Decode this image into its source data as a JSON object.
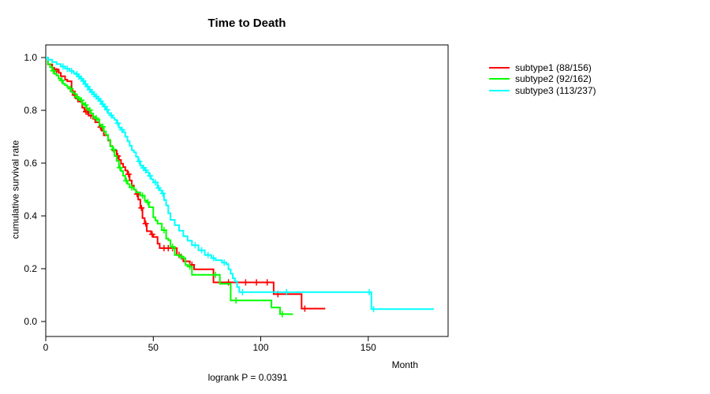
{
  "chart_data": {
    "type": "line",
    "variant": "kaplan-meier-step",
    "title": "Time to Death",
    "xlabel": "Month",
    "ylabel": "cumulative survival rate",
    "footnote": "logrank P = 0.0391",
    "xlim": [
      0,
      187
    ],
    "ylim": [
      0,
      1.05
    ],
    "xticks": [
      0,
      50,
      100,
      150
    ],
    "yticks": [
      1.0,
      0.8,
      0.6,
      0.4,
      0.2,
      0.0
    ],
    "ytick_labels": [
      "1.0",
      "0.8",
      "0.6",
      "0.4",
      "0.2",
      "0.0"
    ],
    "grid": false,
    "legend_position": "right-outside",
    "axis_color": "#000000",
    "series": [
      {
        "name": "subtype1 (88/156)",
        "color": "#ff0000",
        "steps": [
          [
            0,
            1.0
          ],
          [
            1,
            0.974
          ],
          [
            3,
            0.961
          ],
          [
            4,
            0.955
          ],
          [
            6,
            0.942
          ],
          [
            7,
            0.929
          ],
          [
            9,
            0.916
          ],
          [
            10,
            0.91
          ],
          [
            12,
            0.872
          ],
          [
            13,
            0.858
          ],
          [
            14,
            0.845
          ],
          [
            15,
            0.833
          ],
          [
            17,
            0.81
          ],
          [
            18,
            0.795
          ],
          [
            20,
            0.78
          ],
          [
            22,
            0.768
          ],
          [
            23,
            0.755
          ],
          [
            25,
            0.736
          ],
          [
            26,
            0.723
          ],
          [
            27,
            0.705
          ],
          [
            29,
            0.686
          ],
          [
            30,
            0.665
          ],
          [
            31,
            0.648
          ],
          [
            33,
            0.627
          ],
          [
            34,
            0.612
          ],
          [
            35,
            0.598
          ],
          [
            36,
            0.585
          ],
          [
            37,
            0.572
          ],
          [
            38,
            0.558
          ],
          [
            39,
            0.534
          ],
          [
            40,
            0.515
          ],
          [
            41,
            0.5
          ],
          [
            42,
            0.483
          ],
          [
            43,
            0.462
          ],
          [
            44,
            0.43
          ],
          [
            45,
            0.392
          ],
          [
            46,
            0.371
          ],
          [
            47,
            0.342
          ],
          [
            49,
            0.33
          ],
          [
            50,
            0.32
          ],
          [
            52,
            0.295
          ],
          [
            53,
            0.278
          ],
          [
            61,
            0.252
          ],
          [
            63,
            0.238
          ],
          [
            64,
            0.228
          ],
          [
            67,
            0.215
          ],
          [
            69,
            0.198
          ],
          [
            78,
            0.148
          ],
          [
            106,
            0.104
          ],
          [
            119,
            0.049
          ],
          [
            130,
            0.049
          ]
        ],
        "censors": [
          [
            5,
            0.948
          ],
          [
            12.5,
            0.872
          ],
          [
            13.5,
            0.858
          ],
          [
            18.7,
            0.795
          ],
          [
            19.4,
            0.795
          ],
          [
            21,
            0.78
          ],
          [
            25.5,
            0.736
          ],
          [
            33.5,
            0.627
          ],
          [
            38.5,
            0.558
          ],
          [
            42.5,
            0.483
          ],
          [
            44.5,
            0.43
          ],
          [
            46.5,
            0.371
          ],
          [
            49.5,
            0.33
          ],
          [
            55,
            0.278
          ],
          [
            57,
            0.278
          ],
          [
            59,
            0.278
          ],
          [
            62,
            0.252
          ],
          [
            68,
            0.215
          ],
          [
            85,
            0.148
          ],
          [
            93,
            0.148
          ],
          [
            98,
            0.148
          ],
          [
            103,
            0.148
          ],
          [
            108,
            0.104
          ],
          [
            120.5,
            0.049
          ]
        ]
      },
      {
        "name": "subtype2 (92/162)",
        "color": "#00ff00",
        "steps": [
          [
            0,
            1.0
          ],
          [
            1,
            0.975
          ],
          [
            2,
            0.963
          ],
          [
            3,
            0.95
          ],
          [
            4,
            0.938
          ],
          [
            5,
            0.932
          ],
          [
            6,
            0.92
          ],
          [
            7,
            0.913
          ],
          [
            8,
            0.901
          ],
          [
            9,
            0.895
          ],
          [
            10,
            0.888
          ],
          [
            11,
            0.882
          ],
          [
            12,
            0.869
          ],
          [
            13,
            0.863
          ],
          [
            14,
            0.851
          ],
          [
            15,
            0.845
          ],
          [
            16,
            0.838
          ],
          [
            17,
            0.826
          ],
          [
            18,
            0.82
          ],
          [
            19,
            0.807
          ],
          [
            20,
            0.801
          ],
          [
            21,
            0.788
          ],
          [
            22,
            0.776
          ],
          [
            23,
            0.77
          ],
          [
            24,
            0.764
          ],
          [
            25,
            0.745
          ],
          [
            26,
            0.738
          ],
          [
            27,
            0.72
          ],
          [
            28,
            0.707
          ],
          [
            29,
            0.688
          ],
          [
            30,
            0.664
          ],
          [
            31,
            0.652
          ],
          [
            32,
            0.627
          ],
          [
            33,
            0.608
          ],
          [
            34,
            0.583
          ],
          [
            35,
            0.57
          ],
          [
            36,
            0.552
          ],
          [
            37,
            0.533
          ],
          [
            38,
            0.521
          ],
          [
            39,
            0.508
          ],
          [
            41,
            0.5
          ],
          [
            42,
            0.489
          ],
          [
            44,
            0.477
          ],
          [
            46,
            0.458
          ],
          [
            47,
            0.452
          ],
          [
            48,
            0.433
          ],
          [
            50,
            0.395
          ],
          [
            51,
            0.383
          ],
          [
            52,
            0.371
          ],
          [
            54,
            0.346
          ],
          [
            56,
            0.314
          ],
          [
            57,
            0.308
          ],
          [
            58,
            0.283
          ],
          [
            60,
            0.252
          ],
          [
            62,
            0.246
          ],
          [
            64,
            0.24
          ],
          [
            65,
            0.214
          ],
          [
            66,
            0.208
          ],
          [
            68,
            0.177
          ],
          [
            81,
            0.143
          ],
          [
            86,
            0.08
          ],
          [
            105,
            0.053
          ],
          [
            109,
            0.028
          ],
          [
            115,
            0.028
          ]
        ],
        "censors": [
          [
            3.5,
            0.95
          ],
          [
            7.5,
            0.913
          ],
          [
            11.5,
            0.882
          ],
          [
            14.5,
            0.851
          ],
          [
            16.5,
            0.838
          ],
          [
            18.5,
            0.82
          ],
          [
            20.5,
            0.801
          ],
          [
            23.5,
            0.77
          ],
          [
            26.5,
            0.738
          ],
          [
            31.5,
            0.652
          ],
          [
            34.5,
            0.583
          ],
          [
            37.5,
            0.533
          ],
          [
            40,
            0.508
          ],
          [
            45,
            0.477
          ],
          [
            47.5,
            0.452
          ],
          [
            55,
            0.346
          ],
          [
            59,
            0.283
          ],
          [
            63,
            0.246
          ],
          [
            67,
            0.208
          ],
          [
            79,
            0.177
          ],
          [
            88.5,
            0.08
          ],
          [
            110,
            0.028
          ]
        ]
      },
      {
        "name": "subtype3 (113/237)",
        "color": "#00ffff",
        "steps": [
          [
            0,
            1.0
          ],
          [
            1,
            0.992
          ],
          [
            3,
            0.983
          ],
          [
            5,
            0.975
          ],
          [
            7,
            0.966
          ],
          [
            9,
            0.958
          ],
          [
            11,
            0.949
          ],
          [
            13,
            0.941
          ],
          [
            14,
            0.937
          ],
          [
            15,
            0.928
          ],
          [
            16,
            0.92
          ],
          [
            17,
            0.911
          ],
          [
            18,
            0.899
          ],
          [
            19,
            0.89
          ],
          [
            20,
            0.878
          ],
          [
            21,
            0.869
          ],
          [
            22,
            0.861
          ],
          [
            23,
            0.852
          ],
          [
            24,
            0.844
          ],
          [
            25,
            0.835
          ],
          [
            26,
            0.823
          ],
          [
            27,
            0.814
          ],
          [
            28,
            0.802
          ],
          [
            29,
            0.789
          ],
          [
            30,
            0.781
          ],
          [
            31,
            0.772
          ],
          [
            32,
            0.764
          ],
          [
            33,
            0.751
          ],
          [
            34,
            0.734
          ],
          [
            35,
            0.726
          ],
          [
            36,
            0.717
          ],
          [
            37,
            0.7
          ],
          [
            38,
            0.683
          ],
          [
            39,
            0.666
          ],
          [
            40,
            0.649
          ],
          [
            41,
            0.641
          ],
          [
            42,
            0.624
          ],
          [
            43,
            0.607
          ],
          [
            44,
            0.59
          ],
          [
            45,
            0.582
          ],
          [
            46,
            0.573
          ],
          [
            47,
            0.565
          ],
          [
            48,
            0.552
          ],
          [
            49,
            0.539
          ],
          [
            50,
            0.527
          ],
          [
            52,
            0.506
          ],
          [
            53,
            0.497
          ],
          [
            54,
            0.485
          ],
          [
            55,
            0.46
          ],
          [
            56,
            0.44
          ],
          [
            57,
            0.41
          ],
          [
            58,
            0.385
          ],
          [
            60,
            0.365
          ],
          [
            62,
            0.344
          ],
          [
            64,
            0.323
          ],
          [
            66,
            0.306
          ],
          [
            68,
            0.289
          ],
          [
            71,
            0.27
          ],
          [
            74,
            0.252
          ],
          [
            77,
            0.24
          ],
          [
            79,
            0.232
          ],
          [
            82,
            0.223
          ],
          [
            84,
            0.217
          ],
          [
            85,
            0.198
          ],
          [
            86,
            0.181
          ],
          [
            87,
            0.164
          ],
          [
            88,
            0.152
          ],
          [
            89,
            0.13
          ],
          [
            90,
            0.111
          ],
          [
            151.5,
            0.047
          ],
          [
            180.5,
            0.047
          ]
        ],
        "censors": [
          [
            8,
            0.966
          ],
          [
            10,
            0.958
          ],
          [
            12,
            0.949
          ],
          [
            14.5,
            0.937
          ],
          [
            15.5,
            0.928
          ],
          [
            16.5,
            0.92
          ],
          [
            17.5,
            0.911
          ],
          [
            18.5,
            0.899
          ],
          [
            19.5,
            0.89
          ],
          [
            20.5,
            0.878
          ],
          [
            21.5,
            0.869
          ],
          [
            22.5,
            0.861
          ],
          [
            23.5,
            0.852
          ],
          [
            24.5,
            0.844
          ],
          [
            25.5,
            0.835
          ],
          [
            26.5,
            0.823
          ],
          [
            27.5,
            0.814
          ],
          [
            28.5,
            0.802
          ],
          [
            30.5,
            0.781
          ],
          [
            33.5,
            0.751
          ],
          [
            35.5,
            0.726
          ],
          [
            43.5,
            0.607
          ],
          [
            45.5,
            0.582
          ],
          [
            46.5,
            0.573
          ],
          [
            48.5,
            0.552
          ],
          [
            51,
            0.527
          ],
          [
            52.5,
            0.506
          ],
          [
            54.5,
            0.485
          ],
          [
            69.5,
            0.289
          ],
          [
            72.5,
            0.27
          ],
          [
            75.5,
            0.252
          ],
          [
            78,
            0.24
          ],
          [
            83,
            0.223
          ],
          [
            91.5,
            0.111
          ],
          [
            112,
            0.111
          ],
          [
            150.5,
            0.111
          ],
          [
            152.5,
            0.047
          ]
        ]
      }
    ]
  }
}
